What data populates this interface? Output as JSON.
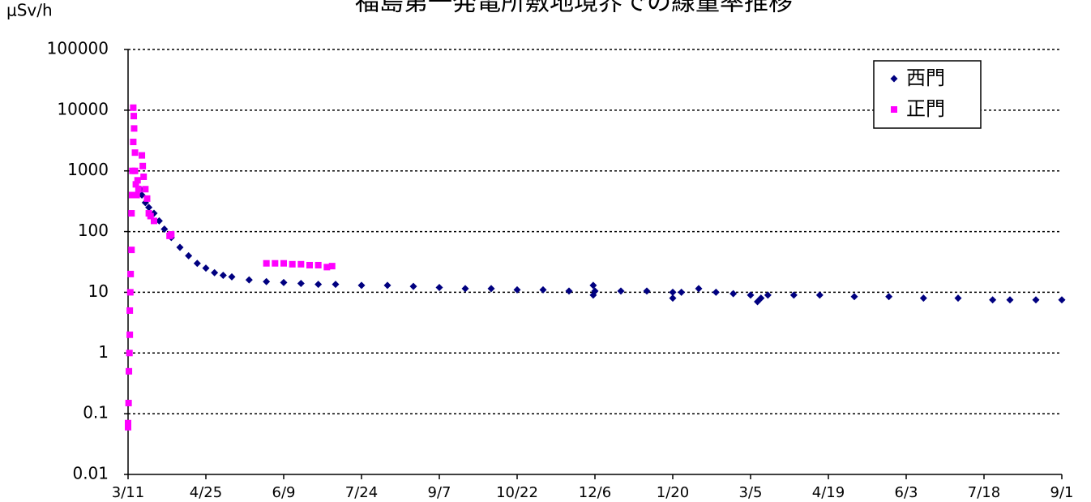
{
  "chart_data": {
    "type": "scatter",
    "title": "福島第一発電所敷地境界での線量率推移",
    "y_axis_label": "μSv/h",
    "log_scale_y": true,
    "grid": true,
    "legend": "top-right",
    "xlim": [
      0,
      540
    ],
    "xticks": [
      {
        "value": 0,
        "label": "3/11"
      },
      {
        "value": 45,
        "label": "4/25"
      },
      {
        "value": 90,
        "label": "6/9"
      },
      {
        "value": 135,
        "label": "7/24"
      },
      {
        "value": 180,
        "label": "9/7"
      },
      {
        "value": 225,
        "label": "10/22"
      },
      {
        "value": 270,
        "label": "12/6"
      },
      {
        "value": 315,
        "label": "1/20"
      },
      {
        "value": 360,
        "label": "3/5"
      },
      {
        "value": 405,
        "label": "4/19"
      },
      {
        "value": 450,
        "label": "6/3"
      },
      {
        "value": 495,
        "label": "7/18"
      },
      {
        "value": 540,
        "label": "9/1"
      }
    ],
    "ylim": [
      0.01,
      100000
    ],
    "yticks": [
      0.01,
      0.1,
      1,
      10,
      100,
      1000,
      10000,
      100000
    ],
    "series": [
      {
        "name": "西門",
        "color": "#000080",
        "marker": "diamond",
        "x": [
          7,
          8,
          10,
          12,
          15,
          18,
          21,
          25,
          30,
          35,
          40,
          45,
          50,
          55,
          60,
          70,
          80,
          90,
          100,
          110,
          120,
          135,
          150,
          165,
          180,
          195,
          210,
          225,
          240,
          255,
          269,
          269,
          270,
          285,
          300,
          315,
          315,
          320,
          330,
          340,
          350,
          360,
          364,
          366,
          370,
          385,
          400,
          420,
          440,
          460,
          480,
          500,
          510,
          525,
          540
        ],
        "values": [
          500,
          400,
          300,
          250,
          200,
          150,
          110,
          80,
          55,
          40,
          30,
          25,
          21,
          19,
          18,
          16,
          15,
          14.5,
          14,
          13.5,
          13.5,
          13,
          13,
          12.5,
          12,
          11.5,
          11.5,
          11,
          11,
          10.5,
          13,
          9,
          10.5,
          10.5,
          10.5,
          10,
          8,
          10,
          11.5,
          10,
          9.5,
          9,
          7,
          8,
          9,
          9,
          9,
          8.5,
          8.5,
          8,
          8,
          7.5,
          7.5,
          7.5,
          7.5
        ]
      },
      {
        "name": "正門",
        "color": "#ff00ff",
        "marker": "square",
        "x": [
          0,
          0,
          0.3,
          0.5,
          0.8,
          1,
          1,
          1.3,
          1.5,
          2,
          2,
          2.3,
          2.5,
          3,
          3,
          3.3,
          3.5,
          4,
          4,
          4.5,
          5,
          5.5,
          6,
          8,
          8.5,
          9,
          10,
          11,
          12,
          13,
          15,
          24,
          25,
          80,
          85,
          90,
          95,
          100,
          105,
          110,
          115,
          118
        ],
        "values": [
          0.06,
          0.07,
          0.15,
          0.5,
          1,
          2,
          5,
          10,
          20,
          50,
          200,
          400,
          1000,
          3000,
          11000,
          8000,
          5000,
          2000,
          1000,
          600,
          400,
          700,
          500,
          1800,
          1200,
          800,
          500,
          350,
          200,
          180,
          150,
          85,
          90,
          30,
          30,
          30,
          29,
          29,
          28,
          28,
          26,
          27
        ]
      }
    ]
  }
}
